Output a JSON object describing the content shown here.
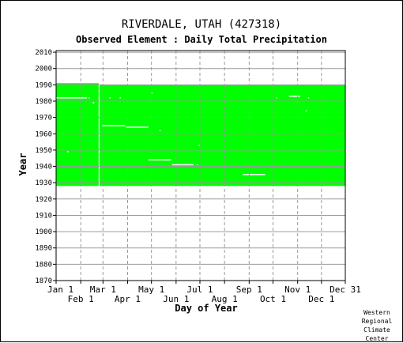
{
  "header": {
    "title": "RIVERDALE, UTAH   (427318)",
    "subtitle": "Observed Element : Daily Total Precipitation"
  },
  "credit": [
    "Western",
    "Regional",
    "Climate",
    "Center"
  ],
  "chart_data": {
    "type": "heatmap",
    "title": "RIVERDALE, UTAH   (427318)",
    "subtitle": "Observed Element : Daily Total Precipitation",
    "xlabel": "Day of Year",
    "ylabel": "Year",
    "x_ticks_top": [
      "Jan 1",
      "Mar 1",
      "May 1",
      "Jul 1",
      "Sep 1",
      "Nov 1",
      "Dec 31"
    ],
    "x_ticks_bottom": [
      "Feb 1",
      "Apr 1",
      "Jun 1",
      "Aug 1",
      "Oct 1",
      "Dec 1"
    ],
    "x_tick_days": [
      1,
      32,
      60,
      91,
      121,
      152,
      182,
      213,
      244,
      274,
      305,
      335,
      365
    ],
    "xlim": [
      1,
      365
    ],
    "ylim": [
      1870,
      2011
    ],
    "y_ticks": [
      1870,
      1880,
      1890,
      1900,
      1910,
      1920,
      1930,
      1940,
      1950,
      1960,
      1970,
      1980,
      1990,
      2000,
      2010
    ],
    "grid": true,
    "data_color": "#00ff00",
    "missing_color": "#ffffff",
    "coverage": [
      {
        "start_day": 1,
        "end_day": 55,
        "start_year": 1928,
        "end_year": 1991
      },
      {
        "start_day": 55,
        "end_day": 365,
        "start_year": 1928,
        "end_year": 1990
      }
    ],
    "missing_segments": [
      {
        "year": 1982,
        "start_day": 1,
        "end_day": 40
      },
      {
        "year": 1982,
        "start_day": 42,
        "end_day": 43
      },
      {
        "year": 1979,
        "start_day": 47,
        "end_day": 49
      },
      {
        "year": 1982,
        "start_day": 68,
        "end_day": 69
      },
      {
        "year": 1982,
        "start_day": 81,
        "end_day": 82
      },
      {
        "year": 1985,
        "start_day": 121,
        "end_day": 122
      },
      {
        "year": 1965,
        "start_day": 59,
        "end_day": 88
      },
      {
        "year": 1964,
        "start_day": 89,
        "end_day": 117
      },
      {
        "year": 1962,
        "start_day": 131,
        "end_day": 132
      },
      {
        "year": 1944,
        "start_day": 117,
        "end_day": 146
      },
      {
        "year": 1941,
        "start_day": 147,
        "end_day": 174
      },
      {
        "year": 1941,
        "start_day": 178,
        "end_day": 179
      },
      {
        "year": 1953,
        "start_day": 180,
        "end_day": 181
      },
      {
        "year": 1949,
        "start_day": 15,
        "end_day": 16
      },
      {
        "year": 1935,
        "start_day": 236,
        "end_day": 264
      },
      {
        "year": 1983,
        "start_day": 294,
        "end_day": 308
      },
      {
        "year": 1982,
        "start_day": 278,
        "end_day": 279
      },
      {
        "year": 1982,
        "start_day": 318,
        "end_day": 319
      },
      {
        "year": 1974,
        "start_day": 315,
        "end_day": 316
      }
    ],
    "missing_day_lines": [
      55
    ]
  }
}
